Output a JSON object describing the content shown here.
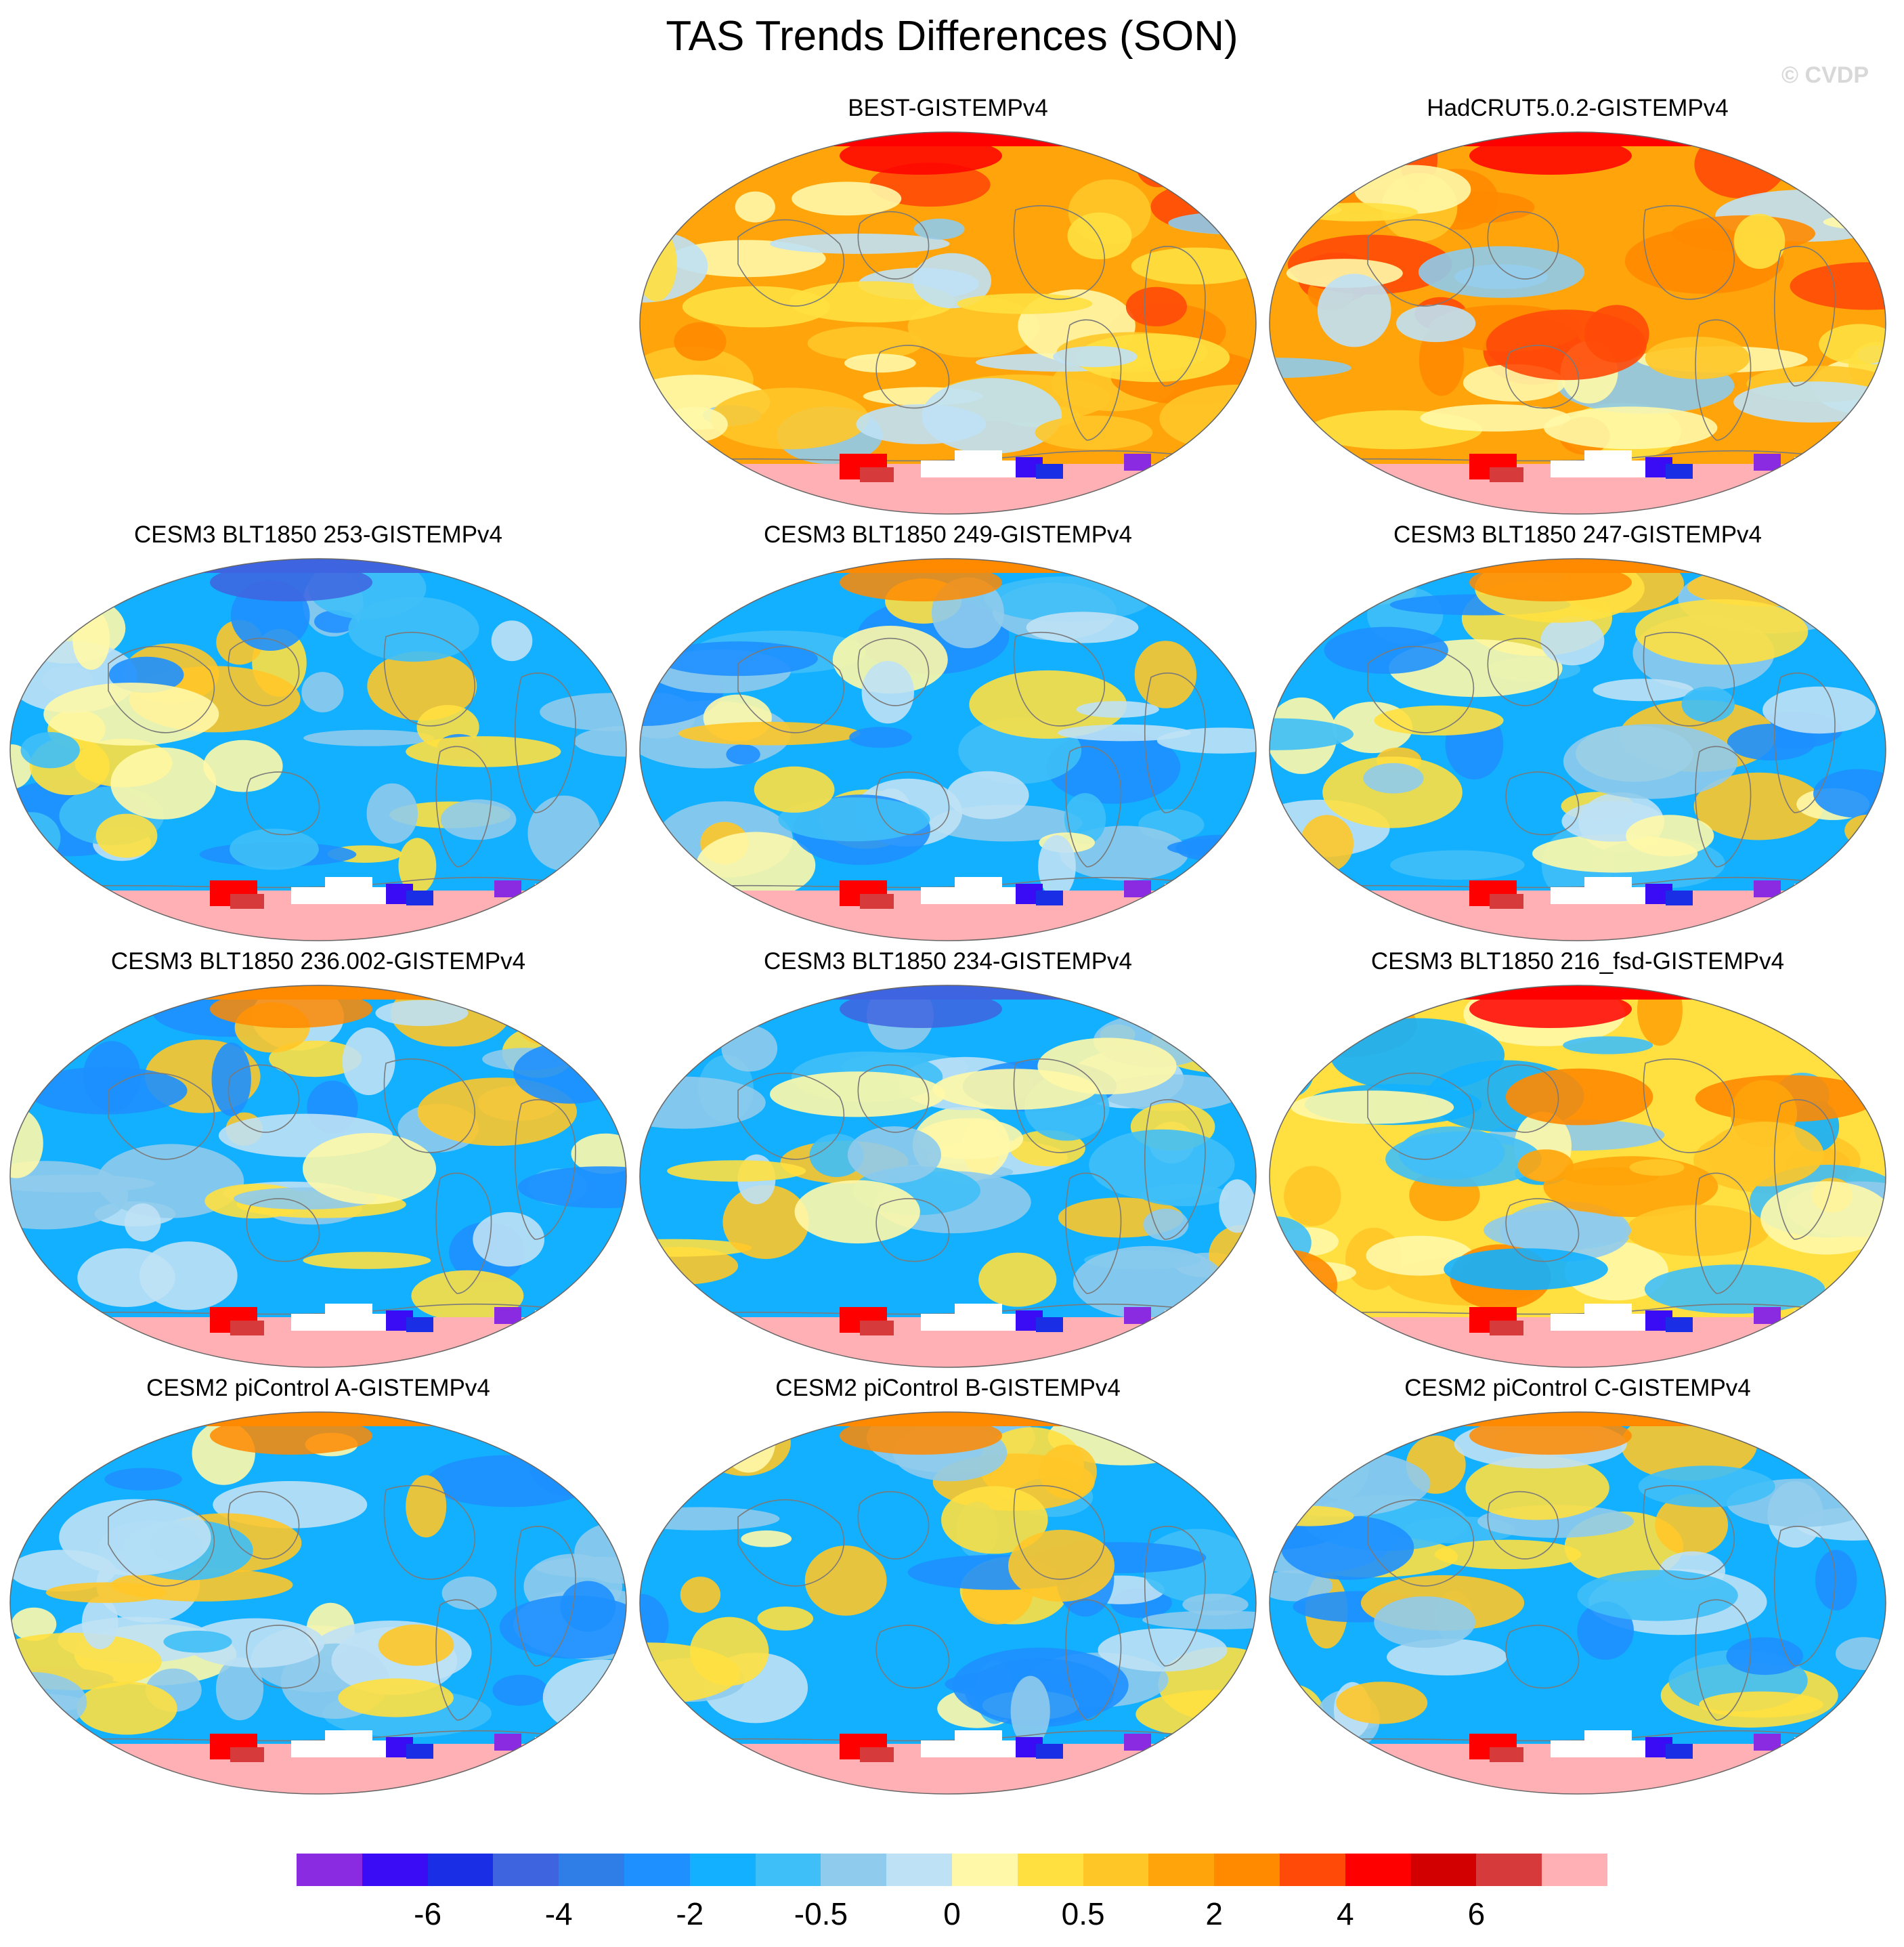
{
  "figure": {
    "title": "TAS Trends Differences (SON)",
    "credit": "© CVDP"
  },
  "panels": [
    {
      "title": "BEST-GISTEMPv4",
      "pattern": "warm"
    },
    {
      "title": "HadCRUT5.0.2-GISTEMPv4",
      "pattern": "warm"
    },
    {
      "title": "CESM3 BLT1850 253-GISTEMPv4",
      "pattern": "cool"
    },
    {
      "title": "CESM3 BLT1850 249-GISTEMPv4",
      "pattern": "cool"
    },
    {
      "title": "CESM3 BLT1850 247-GISTEMPv4",
      "pattern": "cool"
    },
    {
      "title": "CESM3 BLT1850 236.002-GISTEMPv4",
      "pattern": "cool"
    },
    {
      "title": "CESM3 BLT1850 234-GISTEMPv4",
      "pattern": "cool"
    },
    {
      "title": "CESM3 BLT1850 216_fsd-GISTEMPv4",
      "pattern": "mixed"
    },
    {
      "title": "CESM2 piControl A-GISTEMPv4",
      "pattern": "cool"
    },
    {
      "title": "CESM2 piControl B-GISTEMPv4",
      "pattern": "cool"
    },
    {
      "title": "CESM2 piControl C-GISTEMPv4",
      "pattern": "cool"
    }
  ],
  "colorbar": {
    "colors": [
      "#8a2be2",
      "#3a0cf5",
      "#1a2ee6",
      "#3f64e0",
      "#2f7ee8",
      "#1e90ff",
      "#12b0ff",
      "#3fbff7",
      "#8fcbec",
      "#bfe1f5",
      "#fff8a8",
      "#ffe040",
      "#ffc628",
      "#ffa40a",
      "#ff8a00",
      "#ff4a08",
      "#ff0000",
      "#d20000",
      "#d63a3a",
      "#ffb0b4"
    ],
    "labels": [
      "-6",
      "-4",
      "-2",
      "-0.5",
      "0",
      "0.5",
      "2",
      "4",
      "6"
    ]
  },
  "colors": {
    "ocean_cool": "#3fbff7",
    "ocean_warm": "#ffa40a",
    "antarctica": "#ffb0b4",
    "coast": "#7a7a7a"
  }
}
